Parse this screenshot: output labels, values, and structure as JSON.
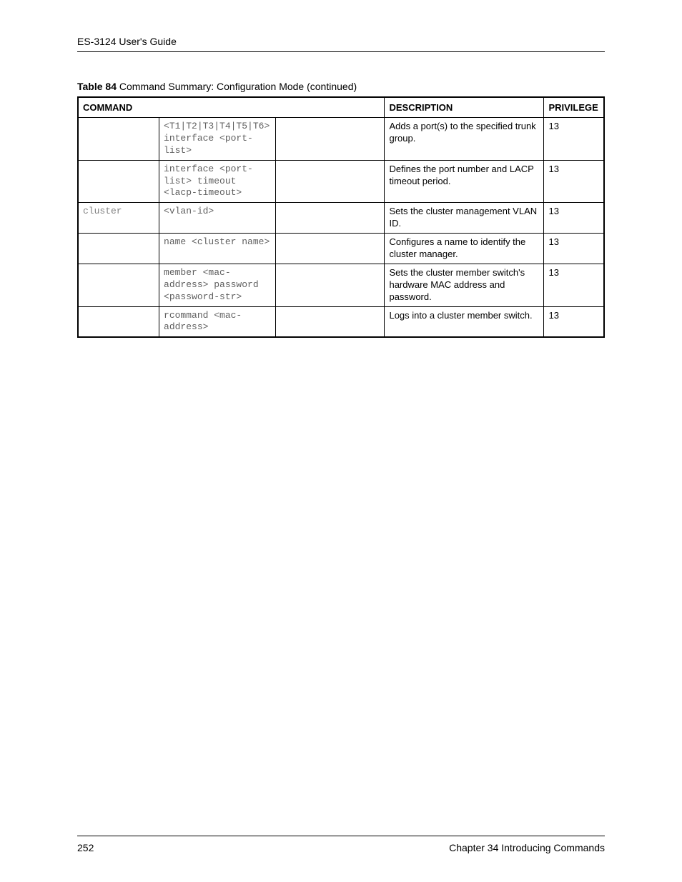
{
  "header": {
    "guide_title": "ES-3124 User's Guide"
  },
  "table": {
    "caption_prefix": "Table 84",
    "caption_text": "   Command Summary: Configuration Mode  (continued)",
    "columns": {
      "command": "COMMAND",
      "description": "DESCRIPTION",
      "privilege": "PRIVILEGE"
    },
    "rows": [
      {
        "cmd1": "",
        "cmd2": "<T1|T2|T3|T4|T5|T6> interface <port-list>",
        "cmd3": "",
        "description": "Adds a port(s) to the specified trunk group.",
        "privilege": "13"
      },
      {
        "cmd1": "",
        "cmd2": "interface <port-list> timeout <lacp-timeout>",
        "cmd3": "",
        "description": "Defines the port number and LACP timeout period.",
        "privilege": "13"
      },
      {
        "cmd1": "cluster",
        "cmd2": "<vlan-id>",
        "cmd3": "",
        "description": "Sets the cluster management VLAN ID.",
        "privilege": "13"
      },
      {
        "cmd1": "",
        "cmd2": "name <cluster name>",
        "cmd3": "",
        "description": "Configures a name to identify the cluster manager.",
        "privilege": "13"
      },
      {
        "cmd1": "",
        "cmd2": "member <mac-address> password <password-str>",
        "cmd3": "",
        "description": "Sets the cluster member switch's hardware MAC address and password.",
        "privilege": "13"
      },
      {
        "cmd1": "",
        "cmd2": "rcommand <mac-address>",
        "cmd3": "",
        "description": "Logs into a cluster member switch.",
        "privilege": "13"
      }
    ]
  },
  "footer": {
    "page_number": "252",
    "chapter": "Chapter 34 Introducing Commands"
  }
}
